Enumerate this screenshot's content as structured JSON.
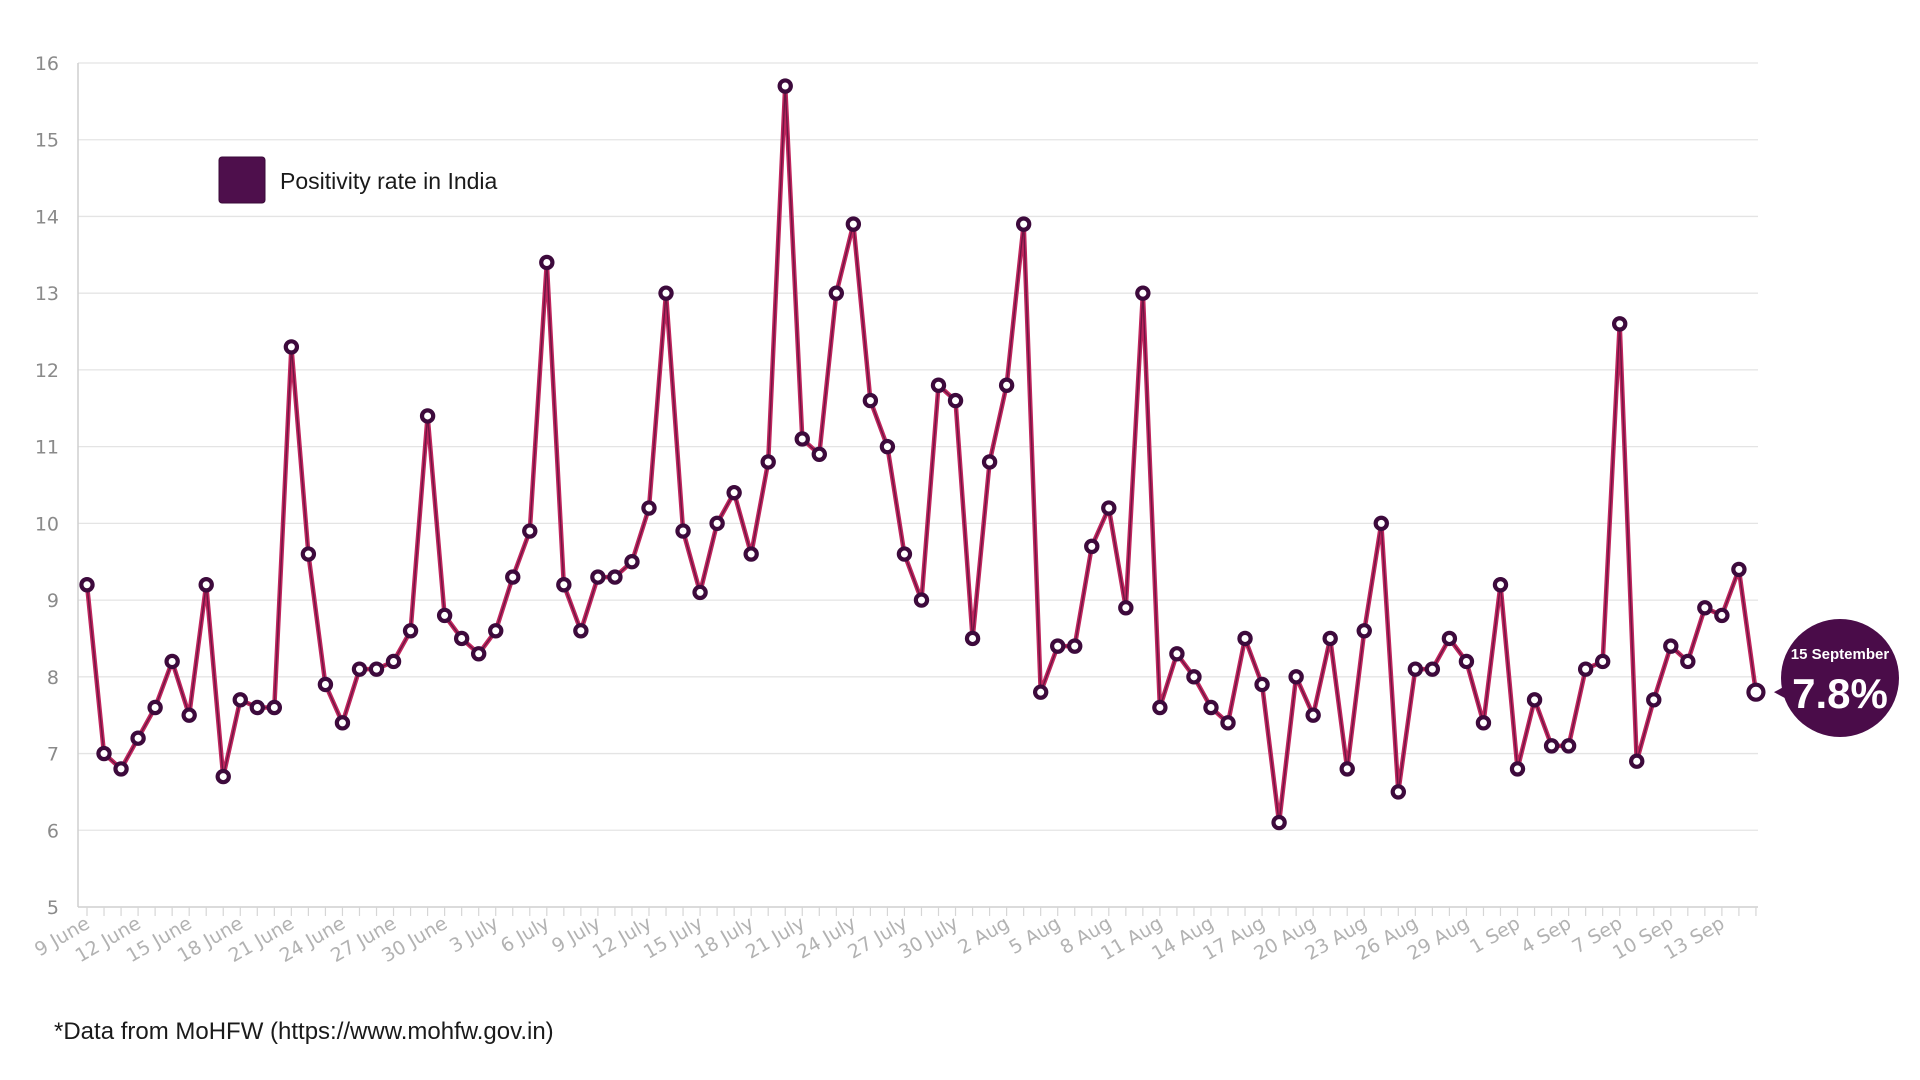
{
  "chart_data": {
    "type": "line",
    "title": "",
    "xlabel": "",
    "ylabel": "",
    "ylim": [
      5,
      16
    ],
    "yticks": [
      5,
      6,
      7,
      8,
      9,
      10,
      11,
      12,
      13,
      14,
      15,
      16
    ],
    "grid": true,
    "legend": {
      "placement": "top-left",
      "label": "Positivity rate in India",
      "color": "#4e0f4c"
    },
    "line_color": "#c0265e",
    "marker_color": "#3d0a3c",
    "x_tick_labels": [
      "9 June",
      "12 June",
      "15 June",
      "18 June",
      "21 June",
      "24 June",
      "27 June",
      "30 June",
      "3 July",
      "6 July",
      "9 July",
      "12 July",
      "15 July",
      "18 July",
      "21 July",
      "24 July",
      "27 July",
      "30 July",
      "2 Aug",
      "5 Aug",
      "8 Aug",
      "11 Aug",
      "14 Aug",
      "17 Aug",
      "20 Aug",
      "23 Aug",
      "26 Aug",
      "29 Aug",
      "1 Sep",
      "4 Sep",
      "7 Sep",
      "10 Sep",
      "13 Sep"
    ],
    "series": [
      {
        "name": "Positivity rate in India",
        "values": [
          9.2,
          7.0,
          6.8,
          7.2,
          7.6,
          8.2,
          7.5,
          9.2,
          6.7,
          7.7,
          7.6,
          7.6,
          12.3,
          9.6,
          7.9,
          7.4,
          8.1,
          8.1,
          8.2,
          8.6,
          11.4,
          8.8,
          8.5,
          8.3,
          8.6,
          9.3,
          9.9,
          13.4,
          9.2,
          8.6,
          9.3,
          9.3,
          9.5,
          10.2,
          13.0,
          9.9,
          9.1,
          10.0,
          10.4,
          9.6,
          10.8,
          15.7,
          11.1,
          10.9,
          13.0,
          13.9,
          11.6,
          11.0,
          9.6,
          9.0,
          11.8,
          11.6,
          8.5,
          10.8,
          11.8,
          13.9,
          7.8,
          8.4,
          8.4,
          9.7,
          10.2,
          8.9,
          13.0,
          7.6,
          8.3,
          8.0,
          7.6,
          7.4,
          8.5,
          7.9,
          6.1,
          8.0,
          7.5,
          8.5,
          6.8,
          8.6,
          10.0,
          6.5,
          8.1,
          8.1,
          8.5,
          8.2,
          7.4,
          9.2,
          6.8,
          7.7,
          7.1,
          7.1,
          8.1,
          8.2,
          12.6,
          6.9,
          7.7,
          8.4,
          8.2,
          8.9,
          8.8,
          9.4,
          7.8
        ]
      }
    ],
    "callout": {
      "date": "15 September",
      "value": "7.8%"
    }
  },
  "source_note": "*Data from MoHFW (https://www.mohfw.gov.in)"
}
